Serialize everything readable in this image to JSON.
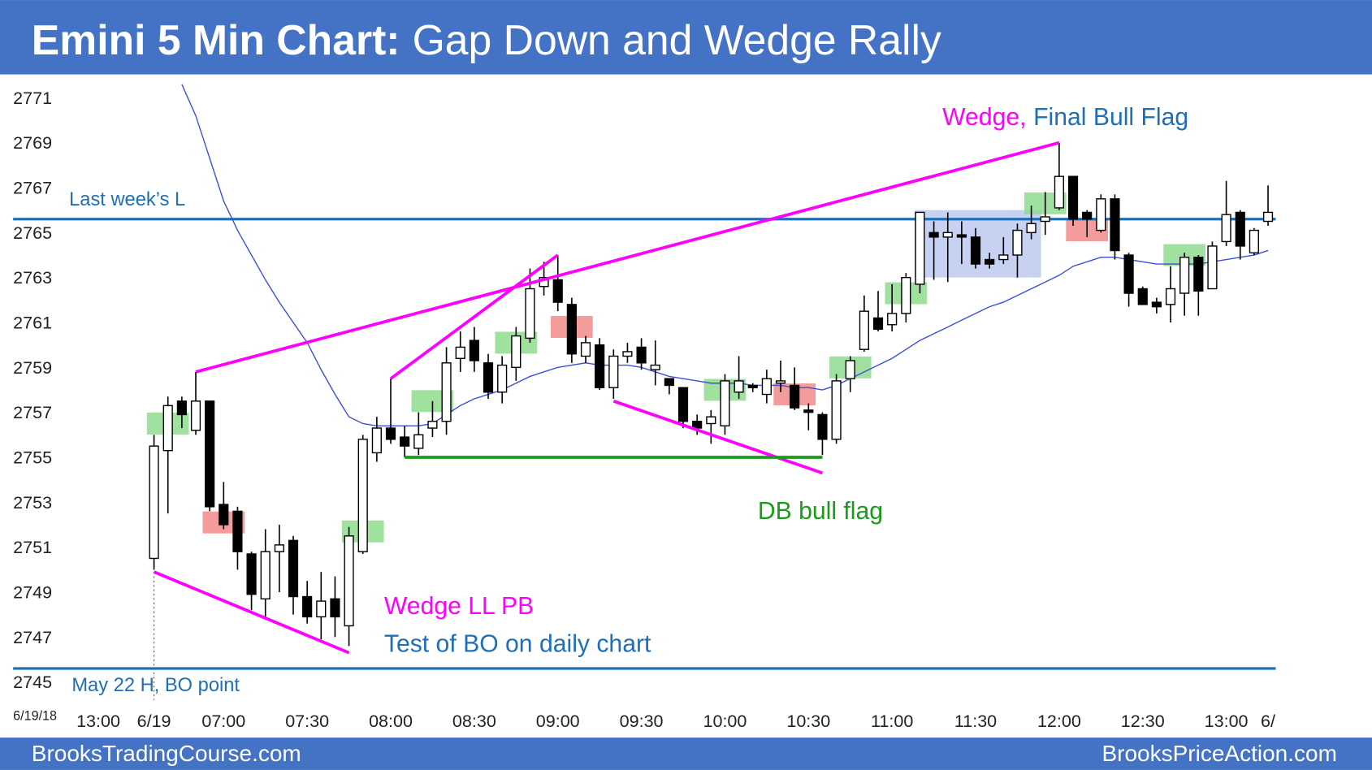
{
  "chart_data": {
    "type": "candlestick",
    "title": "Emini 5 Min Chart:",
    "subtitle": "Gap Down and Wedge Rally",
    "date_label": "6/19/18",
    "footer_left": "BrooksTradingCourse.com",
    "footer_right": "BrooksPriceAction.com",
    "ylim": [
      2744.2,
      2772
    ],
    "yticks": [
      2745,
      2747,
      2749,
      2751,
      2753,
      2755,
      2757,
      2759,
      2761,
      2763,
      2765,
      2767,
      2769,
      2771
    ],
    "xlim": [
      -7,
      83
    ],
    "xticks": [
      {
        "value": -4,
        "label": "13:00"
      },
      {
        "value": 0,
        "label": "6/19"
      },
      {
        "value": 5,
        "label": "07:00"
      },
      {
        "value": 11,
        "label": "07:30"
      },
      {
        "value": 17,
        "label": "08:00"
      },
      {
        "value": 23,
        "label": "08:30"
      },
      {
        "value": 29,
        "label": "09:00"
      },
      {
        "value": 35,
        "label": "09:30"
      },
      {
        "value": 41,
        "label": "10:00"
      },
      {
        "value": 47,
        "label": "10:30"
      },
      {
        "value": 53,
        "label": "11:00"
      },
      {
        "value": 59,
        "label": "11:30"
      },
      {
        "value": 65,
        "label": "12:00"
      },
      {
        "value": 71,
        "label": "12:30"
      },
      {
        "value": 77,
        "label": "13:00"
      },
      {
        "value": 80,
        "label": "6/"
      }
    ],
    "open": [
      2750.5,
      2755.3,
      2757.5,
      2756.2,
      2757.5,
      2752.9,
      2752.6,
      2750.7,
      2748.7,
      2750.8,
      2751.3,
      2748.8,
      2747.9,
      2748.7,
      2747.5,
      2750.8,
      2755.2,
      2756.3,
      2755.9,
      2755.4,
      2756.3,
      2756.6,
      2759.4,
      2760.2,
      2759.2,
      2757.9,
      2759,
      2760.3,
      2762.6,
      2762.9,
      2761.8,
      2759.5,
      2760,
      2758.1,
      2759.5,
      2759.9,
      2758.9,
      2758.5,
      2758.1,
      2756.6,
      2756.5,
      2756.4,
      2757.9,
      2758.2,
      2757.8,
      2758.3,
      2758.2,
      2757.1,
      2756.9,
      2755.8,
      2758.5,
      2759.8,
      2761.2,
      2760.9,
      2761.4,
      2762.7,
      2765,
      2764.8,
      2764.9,
      2764.8,
      2763.8,
      2763.8,
      2764,
      2765,
      2765.5,
      2766.1,
      2767.5,
      2765.9,
      2765.1,
      2766.5,
      2764,
      2762.5,
      2761.9,
      2761.8,
      2762.3,
      2763.9,
      2762.5,
      2764.6,
      2765.9,
      2764.1,
      2765.5
    ],
    "high": [
      2756,
      2757.7,
      2757.7,
      2758.8,
      2757.5,
      2753.9,
      2752.8,
      2750.8,
      2751.8,
      2752,
      2751.5,
      2749.5,
      2749.9,
      2749.7,
      2751.9,
      2756,
      2756.8,
      2758.5,
      2756.4,
      2757,
      2757.5,
      2759.9,
      2760.6,
      2760.8,
      2759.6,
      2759.5,
      2760.8,
      2763.4,
      2763.7,
      2764,
      2762.1,
      2760.4,
      2760.3,
      2759.8,
      2760.1,
      2760.3,
      2760.2,
      2758.5,
      2758.1,
      2756.9,
      2757.1,
      2758.7,
      2759.5,
      2758.3,
      2758.9,
      2759.3,
      2759,
      2757.4,
      2757,
      2758.7,
      2759.5,
      2762.2,
      2762.4,
      2762.7,
      2763.2,
      2765.9,
      2765.5,
      2765.9,
      2765.5,
      2765.2,
      2764.1,
      2764.8,
      2765.4,
      2766.2,
      2766.8,
      2769,
      2767.5,
      2766,
      2766.7,
      2766.7,
      2764.1,
      2762.6,
      2762.1,
      2763.5,
      2764.1,
      2764,
      2764.6,
      2767.3,
      2766,
      2765.2,
      2767.1
    ],
    "low": [
      2750,
      2752.5,
      2756.3,
      2756,
      2752.6,
      2751.8,
      2750,
      2748.2,
      2747.8,
      2749,
      2748,
      2747.6,
      2746.9,
      2747,
      2746.6,
      2750.7,
      2754.8,
      2755.6,
      2755,
      2755.1,
      2755.9,
      2756,
      2758.8,
      2758.8,
      2757.6,
      2757.4,
      2758.4,
      2760.1,
      2762.2,
      2761.5,
      2759.2,
      2759.2,
      2758,
      2757.6,
      2759.2,
      2758.9,
      2758.2,
      2757.8,
      2756.3,
      2756,
      2755.6,
      2756,
      2757.6,
      2757.9,
      2757.4,
      2757.9,
      2757.1,
      2756.2,
      2755.1,
      2755.6,
      2757.9,
      2759.7,
      2760.6,
      2760.6,
      2761,
      2762.3,
      2762.9,
      2762.8,
      2763.6,
      2763.4,
      2763.4,
      2763.6,
      2763,
      2764.7,
      2764.9,
      2766,
      2765.3,
      2764.8,
      2765,
      2763.8,
      2761.7,
      2761.8,
      2761.4,
      2761,
      2761.3,
      2761.3,
      2762.5,
      2764.4,
      2763.8,
      2764,
      2765.3
    ],
    "close": [
      2755.5,
      2757.3,
      2756.9,
      2757.5,
      2752.8,
      2752,
      2750.8,
      2748.9,
      2750.8,
      2751.1,
      2748.8,
      2747.9,
      2748.6,
      2747.9,
      2751.5,
      2755.8,
      2756.3,
      2755.8,
      2755.5,
      2756,
      2756.6,
      2759.2,
      2759.9,
      2759.3,
      2757.9,
      2759.1,
      2760.4,
      2762.5,
      2763,
      2761.9,
      2759.6,
      2760.1,
      2758.1,
      2759.5,
      2759.7,
      2759.2,
      2759.1,
      2758.2,
      2756.6,
      2756.3,
      2756.8,
      2758.4,
      2758.4,
      2758.1,
      2758.5,
      2758.4,
      2757.2,
      2757,
      2755.8,
      2758.4,
      2759.3,
      2761.5,
      2760.7,
      2761.4,
      2763,
      2765.9,
      2764.8,
      2765,
      2764.8,
      2763.6,
      2763.6,
      2764,
      2765.1,
      2765.4,
      2765.7,
      2767.5,
      2765.6,
      2765.6,
      2766.5,
      2764.2,
      2762.3,
      2761.8,
      2761.7,
      2762.5,
      2763.9,
      2762.4,
      2764.4,
      2765.8,
      2764.4,
      2765.1,
      2765.9
    ],
    "ema": {
      "color": "#3b4fd8",
      "values": [
        null,
        null,
        2771.6,
        2770.2,
        2768.3,
        2766.4,
        2765.1,
        2764,
        2762.9,
        2761.9,
        2761,
        2760.1,
        2758.9,
        2757.8,
        2756.8,
        2756.5,
        2756.4,
        2756.4,
        2756.4,
        2756.4,
        2756.5,
        2756.9,
        2757.3,
        2757.6,
        2757.8,
        2758,
        2758.3,
        2758.6,
        2758.8,
        2759,
        2759.1,
        2759.2,
        2759.1,
        2759.1,
        2759.1,
        2759,
        2758.8,
        2758.6,
        2758.5,
        2758.4,
        2758.3,
        2758.3,
        2758.3,
        2758.2,
        2758.2,
        2758.2,
        2758.1,
        2758.1,
        2758,
        2758.2,
        2758.5,
        2758.8,
        2759.1,
        2759.4,
        2759.8,
        2760.2,
        2760.5,
        2760.8,
        2761.1,
        2761.4,
        2761.7,
        2761.9,
        2762.2,
        2762.5,
        2762.8,
        2763.1,
        2763.5,
        2763.7,
        2763.9,
        2763.9,
        2763.8,
        2763.7,
        2763.6,
        2763.6,
        2763.6,
        2763.6,
        2763.7,
        2763.8,
        2763.9,
        2764,
        2764.2
      ]
    },
    "hlines": [
      {
        "value": 2765.6,
        "label": "Last week’s L",
        "color": "#1f6fb5"
      },
      {
        "value": 2745.6,
        "label": "May 22 H, BO point",
        "color": "#1f6fb5"
      }
    ],
    "trendlines": [
      {
        "color": "#ff00ff",
        "points": [
          [
            0,
            2749.9
          ],
          [
            14,
            2746.3
          ]
        ]
      },
      {
        "color": "#ff00ff",
        "points": [
          [
            3,
            2758.8
          ],
          [
            65,
            2769
          ]
        ]
      },
      {
        "color": "#ff00ff",
        "points": [
          [
            17,
            2758.5
          ],
          [
            29,
            2764
          ]
        ]
      },
      {
        "color": "#ff00ff",
        "points": [
          [
            33,
            2757.5
          ],
          [
            48,
            2754.3
          ]
        ]
      },
      {
        "color": "#1a9b1a",
        "points": [
          [
            18,
            2755
          ],
          [
            48,
            2755
          ]
        ]
      }
    ],
    "range_box": {
      "x": [
        55,
        63.7
      ],
      "y": [
        2763,
        2766
      ],
      "color": "#b4c2ec"
    },
    "highlights": [
      {
        "x": 1,
        "y": 2756.5,
        "color": "#8fdc8f"
      },
      {
        "x": 15,
        "y": 2751.7,
        "color": "#8fdc8f"
      },
      {
        "x": 20,
        "y": 2757.5,
        "color": "#8fdc8f"
      },
      {
        "x": 26,
        "y": 2760.1,
        "color": "#8fdc8f"
      },
      {
        "x": 41,
        "y": 2758,
        "color": "#8fdc8f"
      },
      {
        "x": 50,
        "y": 2759,
        "color": "#8fdc8f"
      },
      {
        "x": 54,
        "y": 2762.3,
        "color": "#8fdc8f"
      },
      {
        "x": 64,
        "y": 2766.3,
        "color": "#8fdc8f"
      },
      {
        "x": 74,
        "y": 2764,
        "color": "#8fdc8f"
      },
      {
        "x": 5,
        "y": 2752.1,
        "color": "#f28b8b"
      },
      {
        "x": 30,
        "y": 2760.8,
        "color": "#f28b8b"
      },
      {
        "x": 46,
        "y": 2757.8,
        "color": "#f28b8b"
      },
      {
        "x": 67,
        "y": 2765.1,
        "color": "#f28b8b"
      }
    ],
    "annotations": [
      {
        "text": "Wedge,",
        "color": "#ff00ff"
      },
      {
        "text": "Final Bull Flag",
        "color": "#1f6fb5"
      },
      {
        "text": "Wedge LL PB",
        "color": "#ff00ff"
      },
      {
        "text": "Test of BO on daily chart",
        "color": "#1f6fb5"
      },
      {
        "text": "DB bull flag",
        "color": "#1a9b1a"
      }
    ]
  }
}
